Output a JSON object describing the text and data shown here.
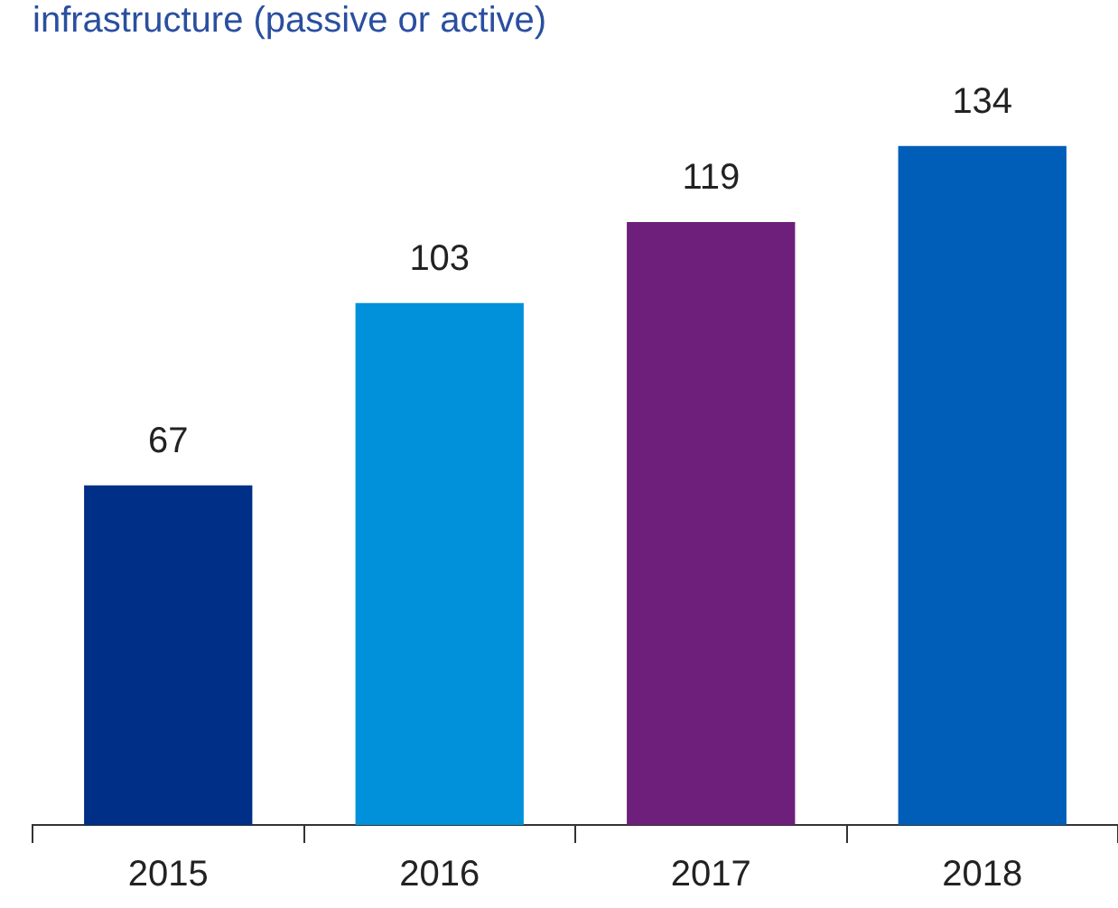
{
  "chart_data": {
    "type": "bar",
    "title": "infrastructure (passive or active)",
    "categories": [
      "2015",
      "2016",
      "2017",
      "2018"
    ],
    "values": [
      67,
      103,
      119,
      134
    ],
    "colors": [
      "#002f87",
      "#0091da",
      "#6d1f7b",
      "#005eb8"
    ],
    "data_labels": true,
    "grid": false,
    "legend": false,
    "tick_labels": "x"
  }
}
